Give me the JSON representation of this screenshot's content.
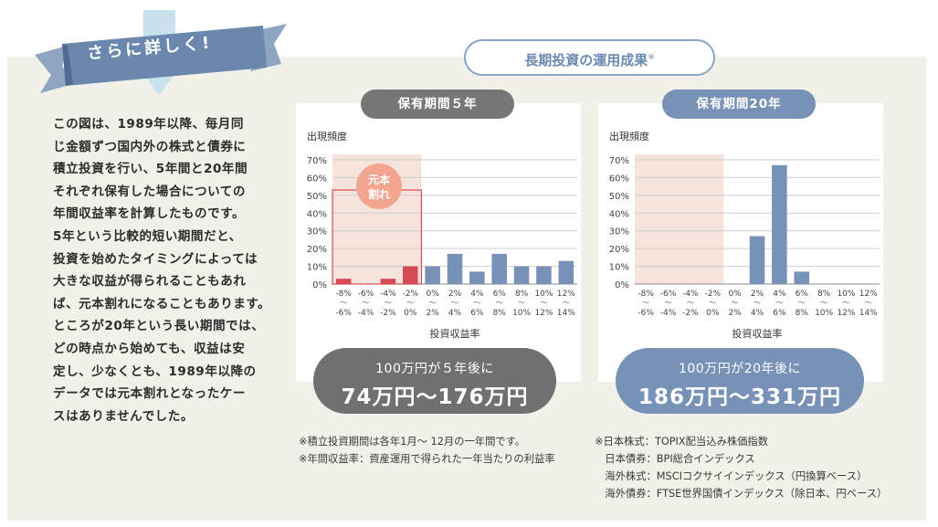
{
  "ribbon": {
    "label": "さらに詳しく!"
  },
  "intro": {
    "lines": [
      "この図は、1989年以降、毎月同",
      "じ金額ずつ国内外の株式と債券に",
      "積立投資を行い、5年間と20年間",
      "それぞれ保有した場合についての",
      "年間収益率を計算したものです。",
      "5年という比較的短い期間だと、",
      "投資を始めたタイミングによっては",
      "大きな収益が得られることもあれ",
      "ば、元本割れになることもあります。",
      "ところが20年という長い期間では、",
      "どの時点から始めても、収益は安",
      "定し、少なくとも、1989年以降の",
      "データでは元本割れとなったケー",
      "スはありませんでした。"
    ]
  },
  "main_title": {
    "text": "長期投資の運用成果",
    "mark": "※"
  },
  "colors": {
    "gray": "#777777",
    "blue": "#7891b7",
    "red": "#d54b55",
    "loss_zone": "#f6e3dc",
    "panel": "#f1f1e9"
  },
  "chart_data": [
    {
      "type": "bar",
      "title": "保有期間５年",
      "ylabel": "出現頻度",
      "xlabel": "投資収益率",
      "yticks": [
        "0%",
        "10%",
        "20%",
        "30%",
        "40%",
        "50%",
        "60%",
        "70%"
      ],
      "ylim": [
        0,
        70
      ],
      "categories": [
        "-8%〜-6%",
        "-6%〜-4%",
        "-4%〜-2%",
        "-2%〜0%",
        "0%〜2%",
        "2%〜4%",
        "4%〜6%",
        "6%〜8%",
        "8%〜10%",
        "10%〜12%",
        "12%〜14%"
      ],
      "category_top": [
        "-8%",
        "-6%",
        "-4%",
        "-2%",
        "0%",
        "2%",
        "4%",
        "6%",
        "8%",
        "10%",
        "12%"
      ],
      "category_bottom": [
        "-6%",
        "-4%",
        "-2%",
        "0%",
        "2%",
        "4%",
        "6%",
        "8%",
        "10%",
        "12%",
        "14%"
      ],
      "values": [
        3,
        0,
        3,
        10,
        10,
        17,
        7,
        17,
        10,
        10,
        13
      ],
      "loss_bins": 4,
      "annotation": "元本割れ",
      "summary_line1": "100万円が５年後に",
      "summary_line2": "74万円〜176万円"
    },
    {
      "type": "bar",
      "title": "保有期間20年",
      "ylabel": "出現頻度",
      "xlabel": "投資収益率",
      "yticks": [
        "0%",
        "10%",
        "20%",
        "30%",
        "40%",
        "50%",
        "60%",
        "70%"
      ],
      "ylim": [
        0,
        70
      ],
      "categories": [
        "-8%〜-6%",
        "-6%〜-4%",
        "-4%〜-2%",
        "-2%〜0%",
        "0%〜2%",
        "2%〜4%",
        "4%〜6%",
        "6%〜8%",
        "8%〜10%",
        "10%〜12%",
        "12%〜14%"
      ],
      "category_top": [
        "-8%",
        "-6%",
        "-4%",
        "-2%",
        "0%",
        "2%",
        "4%",
        "6%",
        "8%",
        "10%",
        "12%"
      ],
      "category_bottom": [
        "-6%",
        "-4%",
        "-2%",
        "0%",
        "2%",
        "4%",
        "6%",
        "8%",
        "10%",
        "12%",
        "14%"
      ],
      "values": [
        0,
        0,
        0,
        0,
        0,
        27,
        67,
        7,
        0,
        0,
        0
      ],
      "loss_bins": 4,
      "summary_line1": "100万円が20年後に",
      "summary_line2": "186万円〜331万円"
    }
  ],
  "notes_left": [
    "※積立投資期間は各年1月〜 12月の一年間です。",
    "※年間収益率：資産運用で得られた一年当たりの利益率"
  ],
  "notes_right": [
    "※日本株式：TOPIX配当込み株価指数",
    "　日本債券：BPI総合インデックス",
    "　海外株式：MSCIコクサイインデックス（円換算ベース）",
    "　海外債券：FTSE世界国債インデックス（除日本、円ベース）"
  ]
}
